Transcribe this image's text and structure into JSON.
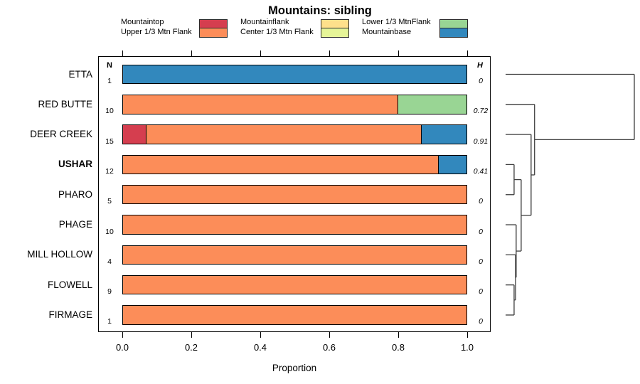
{
  "chart_data": {
    "type": "bar",
    "subtype": "horizontal-stacked-proportion-with-dendrogram",
    "title": "Mountains: sibling",
    "xlabel": "Proportion",
    "xlim": [
      0.0,
      1.0
    ],
    "x_ticks": [
      0.0,
      0.2,
      0.4,
      0.6,
      0.8,
      1.0
    ],
    "x_tick_labels": [
      "0.0",
      "0.2",
      "0.4",
      "0.6",
      "0.8",
      "1.0"
    ],
    "n_header": "N",
    "h_header": "H",
    "class_colors": {
      "Mountaintop": "#D53E4F",
      "Upper 1/3 Mtn Flank": "#FC8D59",
      "Mountainflank": "#FEE08B",
      "Center 1/3 Mtn Flank": "#E6F598",
      "Lower 1/3 MtnFlank": "#99D594",
      "Mountainbase": "#3288BD"
    },
    "legend_columns": [
      [
        "Mountaintop",
        "Upper 1/3 Mtn Flank"
      ],
      [
        "Mountainflank",
        "Center 1/3 Mtn Flank"
      ],
      [
        "Lower 1/3 MtnFlank",
        "Mountainbase"
      ]
    ],
    "rows": [
      {
        "label": "ETTA",
        "bold": false,
        "n": 1,
        "h": "0",
        "segments": [
          {
            "class": "Mountainbase",
            "value": 1.0
          }
        ]
      },
      {
        "label": "RED BUTTE",
        "bold": false,
        "n": 10,
        "h": "0.72",
        "segments": [
          {
            "class": "Upper 1/3 Mtn Flank",
            "value": 0.8
          },
          {
            "class": "Lower 1/3 MtnFlank",
            "value": 0.2
          }
        ]
      },
      {
        "label": "DEER CREEK",
        "bold": false,
        "n": 15,
        "h": "0.91",
        "segments": [
          {
            "class": "Mountaintop",
            "value": 0.0667
          },
          {
            "class": "Upper 1/3 Mtn Flank",
            "value": 0.8
          },
          {
            "class": "Mountainbase",
            "value": 0.1333
          }
        ]
      },
      {
        "label": "USHAR",
        "bold": true,
        "n": 12,
        "h": "0.41",
        "segments": [
          {
            "class": "Upper 1/3 Mtn Flank",
            "value": 0.9167
          },
          {
            "class": "Mountainbase",
            "value": 0.0833
          }
        ]
      },
      {
        "label": "PHARO",
        "bold": false,
        "n": 5,
        "h": "0",
        "segments": [
          {
            "class": "Upper 1/3 Mtn Flank",
            "value": 1.0
          }
        ]
      },
      {
        "label": "PHAGE",
        "bold": false,
        "n": 10,
        "h": "0",
        "segments": [
          {
            "class": "Upper 1/3 Mtn Flank",
            "value": 1.0
          }
        ]
      },
      {
        "label": "MILL HOLLOW",
        "bold": false,
        "n": 4,
        "h": "0",
        "segments": [
          {
            "class": "Upper 1/3 Mtn Flank",
            "value": 1.0
          }
        ]
      },
      {
        "label": "FLOWELL",
        "bold": false,
        "n": 9,
        "h": "0",
        "segments": [
          {
            "class": "Upper 1/3 Mtn Flank",
            "value": 1.0
          }
        ]
      },
      {
        "label": "FIRMAGE",
        "bold": false,
        "n": 1,
        "h": "0",
        "segments": [
          {
            "class": "Upper 1/3 Mtn Flank",
            "value": 1.0
          }
        ]
      }
    ],
    "dendrogram": {
      "merges": [
        {
          "id": "m1",
          "a": "USHAR",
          "b": "PHARO",
          "height": 0.066
        },
        {
          "id": "m2",
          "a": "FLOWELL",
          "b": "FIRMAGE",
          "height": 0.066
        },
        {
          "id": "m3",
          "a": "MILL HOLLOW",
          "b": "m2",
          "height": 0.077
        },
        {
          "id": "m4",
          "a": "PHAGE",
          "b": "m3",
          "height": 0.082
        },
        {
          "id": "m5",
          "a": "m1",
          "b": "m4",
          "height": 0.121
        },
        {
          "id": "m6",
          "a": "DEER CREEK",
          "b": "m5",
          "height": 0.198
        },
        {
          "id": "m7",
          "a": "RED BUTTE",
          "b": "m6",
          "height": 0.225
        },
        {
          "id": "m8",
          "a": "ETTA",
          "b": "m7",
          "height": 1.0
        }
      ]
    }
  }
}
